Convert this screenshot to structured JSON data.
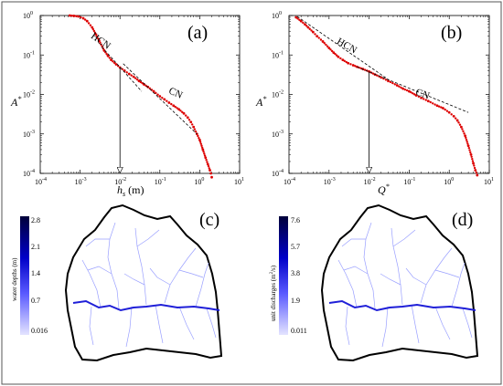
{
  "chart_data": [
    {
      "type": "line",
      "panel": "(a)",
      "xlabel_var": "h",
      "xlabel_sub": "s",
      "xlabel_unit": " (m)",
      "ylabel_var": "A",
      "ylabel_sup": "*",
      "x_scale": "log",
      "y_scale": "log",
      "xlim": [
        0.0001,
        10
      ],
      "ylim": [
        0.0001,
        1
      ],
      "x_ticks": [
        {
          "base": "10",
          "exp": "-4",
          "value": 0.0001
        },
        {
          "base": "10",
          "exp": "-3",
          "value": 0.001
        },
        {
          "base": "10",
          "exp": "-2",
          "value": 0.01
        },
        {
          "base": "10",
          "exp": "-1",
          "value": 0.1
        },
        {
          "base": "10",
          "exp": "0",
          "value": 1
        },
        {
          "base": "10",
          "exp": "1",
          "value": 10
        }
      ],
      "y_ticks": [
        {
          "base": "10",
          "exp": "0",
          "value": 1
        },
        {
          "base": "10",
          "exp": "-1",
          "value": 0.1
        },
        {
          "base": "10",
          "exp": "-2",
          "value": 0.01
        },
        {
          "base": "10",
          "exp": "-3",
          "value": 0.001
        },
        {
          "base": "10",
          "exp": "-4",
          "value": 0.0001
        }
      ],
      "series": [
        {
          "style": "dots",
          "color": "#dd0000",
          "x": [
            0.00055,
            0.0007,
            0.0009,
            0.0012,
            0.0015,
            0.002,
            0.0025,
            0.003,
            0.004,
            0.005,
            0.006,
            0.008,
            0.01,
            0.013,
            0.017,
            0.022,
            0.03,
            0.04,
            0.05,
            0.07,
            0.1,
            0.13,
            0.17,
            0.22,
            0.3,
            0.4,
            0.5,
            0.6,
            0.7,
            0.85,
            1.0,
            1.2,
            1.4,
            1.6,
            1.8,
            1.9,
            2.0
          ],
          "y": [
            1,
            0.98,
            0.95,
            0.85,
            0.72,
            0.5,
            0.33,
            0.23,
            0.13,
            0.095,
            0.075,
            0.058,
            0.048,
            0.04,
            0.033,
            0.028,
            0.022,
            0.018,
            0.0155,
            0.012,
            0.009,
            0.0075,
            0.0062,
            0.0052,
            0.0042,
            0.0033,
            0.0026,
            0.002,
            0.0015,
            0.001,
            0.0007,
            0.0004,
            0.00025,
            0.00017,
            0.00012,
            0.0001,
            8e-05
          ]
        },
        {
          "style": "dashed",
          "color": "#000000",
          "x": [
            0.0035,
            0.035
          ],
          "y": [
            0.16,
            0.012
          ]
        },
        {
          "style": "dashed",
          "color": "#000000",
          "x": [
            0.012,
            0.85
          ],
          "y": [
            0.06,
            0.001
          ]
        }
      ],
      "annotations": [
        {
          "text": "HCN",
          "x": 0.0018,
          "y": 0.28,
          "rotate": 35
        },
        {
          "text": "CN",
          "x": 0.16,
          "y": 0.011,
          "rotate": 25
        }
      ],
      "arrow": {
        "x": 0.01,
        "y_from": 0.048,
        "y_to": 0.0001
      }
    },
    {
      "type": "line",
      "panel": "(b)",
      "xlabel_var": "Q",
      "xlabel_sup": "*",
      "ylabel_var": "A",
      "ylabel_sup": "*",
      "x_scale": "log",
      "y_scale": "log",
      "xlim": [
        0.0001,
        10
      ],
      "ylim": [
        0.0001,
        1
      ],
      "x_ticks": [
        {
          "base": "10",
          "exp": "-4",
          "value": 0.0001
        },
        {
          "base": "10",
          "exp": "-3",
          "value": 0.001
        },
        {
          "base": "10",
          "exp": "-2",
          "value": 0.01
        },
        {
          "base": "10",
          "exp": "-1",
          "value": 0.1
        },
        {
          "base": "10",
          "exp": "0",
          "value": 1
        },
        {
          "base": "10",
          "exp": "1",
          "value": 10
        }
      ],
      "y_ticks": [
        {
          "base": "10",
          "exp": "0",
          "value": 1
        },
        {
          "base": "10",
          "exp": "-1",
          "value": 0.1
        },
        {
          "base": "10",
          "exp": "-2",
          "value": 0.01
        },
        {
          "base": "10",
          "exp": "-3",
          "value": 0.001
        },
        {
          "base": "10",
          "exp": "-4",
          "value": 0.0001
        }
      ],
      "series": [
        {
          "style": "dots",
          "color": "#dd0000",
          "x": [
            0.00015,
            0.0002,
            0.00025,
            0.0003,
            0.0004,
            0.0005,
            0.0007,
            0.001,
            0.0013,
            0.0017,
            0.0022,
            0.003,
            0.004,
            0.005,
            0.007,
            0.01,
            0.014,
            0.02,
            0.03,
            0.05,
            0.07,
            0.1,
            0.15,
            0.2,
            0.3,
            0.5,
            0.7,
            1.0,
            1.3,
            1.6,
            2.0,
            2.5,
            3.0,
            3.5,
            4.0,
            4.5,
            5.0
          ],
          "y": [
            0.9,
            0.72,
            0.6,
            0.5,
            0.38,
            0.3,
            0.22,
            0.15,
            0.115,
            0.09,
            0.075,
            0.062,
            0.055,
            0.05,
            0.044,
            0.038,
            0.032,
            0.027,
            0.022,
            0.017,
            0.014,
            0.012,
            0.0095,
            0.0082,
            0.0068,
            0.0052,
            0.0045,
            0.0035,
            0.0028,
            0.0022,
            0.0015,
            0.0009,
            0.0005,
            0.0003,
            0.00018,
            0.00012,
            9e-05
          ]
        },
        {
          "style": "dashed",
          "color": "#000000",
          "x": [
            0.00016,
            0.03
          ],
          "y": [
            0.95,
            0.024
          ]
        },
        {
          "style": "dashed",
          "color": "#000000",
          "x": [
            0.005,
            3.0
          ],
          "y": [
            0.05,
            0.0035
          ]
        }
      ],
      "annotations": [
        {
          "text": "HCN",
          "x": 0.0015,
          "y": 0.2,
          "rotate": 30
        },
        {
          "text": "CN",
          "x": 0.14,
          "y": 0.01,
          "rotate": 20
        }
      ],
      "arrow": {
        "x": 0.01,
        "y_from": 0.038,
        "y_to": 0.0001
      }
    },
    {
      "type": "heatmap",
      "panel": "(c)",
      "colorbar_label": "water depths (m)",
      "colorbar_ticks": [
        "2.8",
        "2.1",
        "1.4",
        "0.7",
        "0.016"
      ],
      "colormap": [
        "#00003a",
        "#0000c8",
        "#4d4dff",
        "#dcdcff"
      ]
    },
    {
      "type": "heatmap",
      "panel": "(d)",
      "colorbar_label_main": "unit discharges (m",
      "colorbar_label_sup": "2",
      "colorbar_label_end": "/s)",
      "colorbar_ticks": [
        "7.6",
        "5.7",
        "3.8",
        "1.9",
        "0.011"
      ],
      "colormap": [
        "#00003a",
        "#0000c8",
        "#4d4dff",
        "#dcdcff"
      ]
    }
  ]
}
